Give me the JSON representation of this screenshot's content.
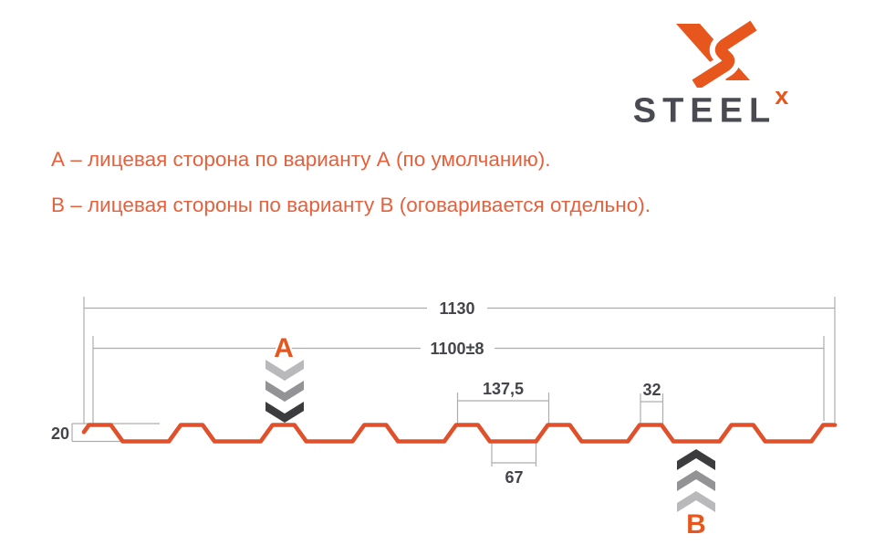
{
  "brand": {
    "name": "STEEL",
    "sup": "x",
    "orange": "#e7571d",
    "dark": "#4a4b52"
  },
  "notes": {
    "variant_a": "А – лицевая сторона по варианту А (по умолчанию).",
    "variant_b": "В – лицевая стороны по варианту В (оговаривается отдельно)."
  },
  "drawing": {
    "dimensions": {
      "overall_width": "1130",
      "useful_width": "1100±8",
      "rib_pitch": "137,5",
      "rib_top_width": "32",
      "rib_bottom_width": "67",
      "profile_height": "20"
    },
    "markers": {
      "side_a": "А",
      "side_b": "В"
    },
    "colors": {
      "profile": "#e0512b",
      "marker_letter": "#e7571d",
      "dim_line": "#adadaf",
      "dim_text": "#44454b",
      "chevron_dark": "#3c3c3e",
      "chevron_mid": "#939396",
      "chevron_light": "#b9b9bb"
    }
  }
}
